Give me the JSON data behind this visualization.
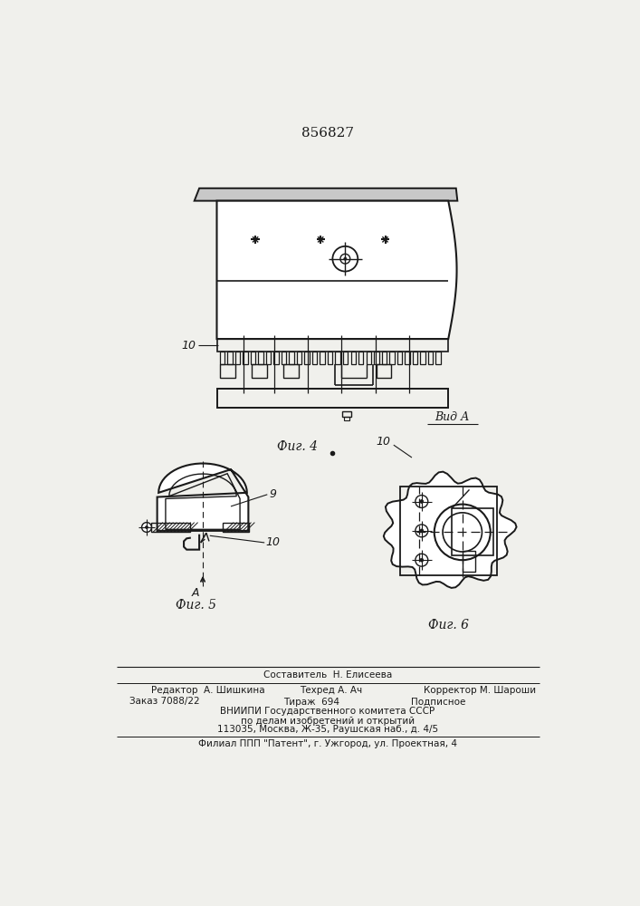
{
  "patent_number": "856827",
  "bg_color": "#f0f0ec",
  "line_color": "#1a1a1a",
  "fig4_caption": "Фиг. 4",
  "fig5_caption": "Фиг. 5",
  "fig6_caption": "Фиг. 6",
  "vid_a_label": "Вид А",
  "label_10_fig4": "10",
  "label_9_fig5": "9",
  "label_10_fig5": "10",
  "label_10_fig6": "10",
  "label_A_fig5": "А",
  "footer_line1": "Составитель  Н. Елисеева",
  "footer_line2_col1": "Редактор  А. Шишкина",
  "footer_line2_col2": "Техред А. Ач",
  "footer_line2_col3": "Корректор М. Шароши",
  "footer_line3_col1": "Заказ 7088/22",
  "footer_line3_col2": "Тираж  694",
  "footer_line3_col3": "Подписное",
  "footer_line4": "ВНИИПИ Государственного комитета СССР",
  "footer_line5": "по делам изобретений и открытий",
  "footer_line6": "113035, Москва, Ж-35, Раушская наб., д. 4/5",
  "footer_line7": "Филиал ППП \"Патент\", г. Ужгород, ул. Проектная, 4"
}
